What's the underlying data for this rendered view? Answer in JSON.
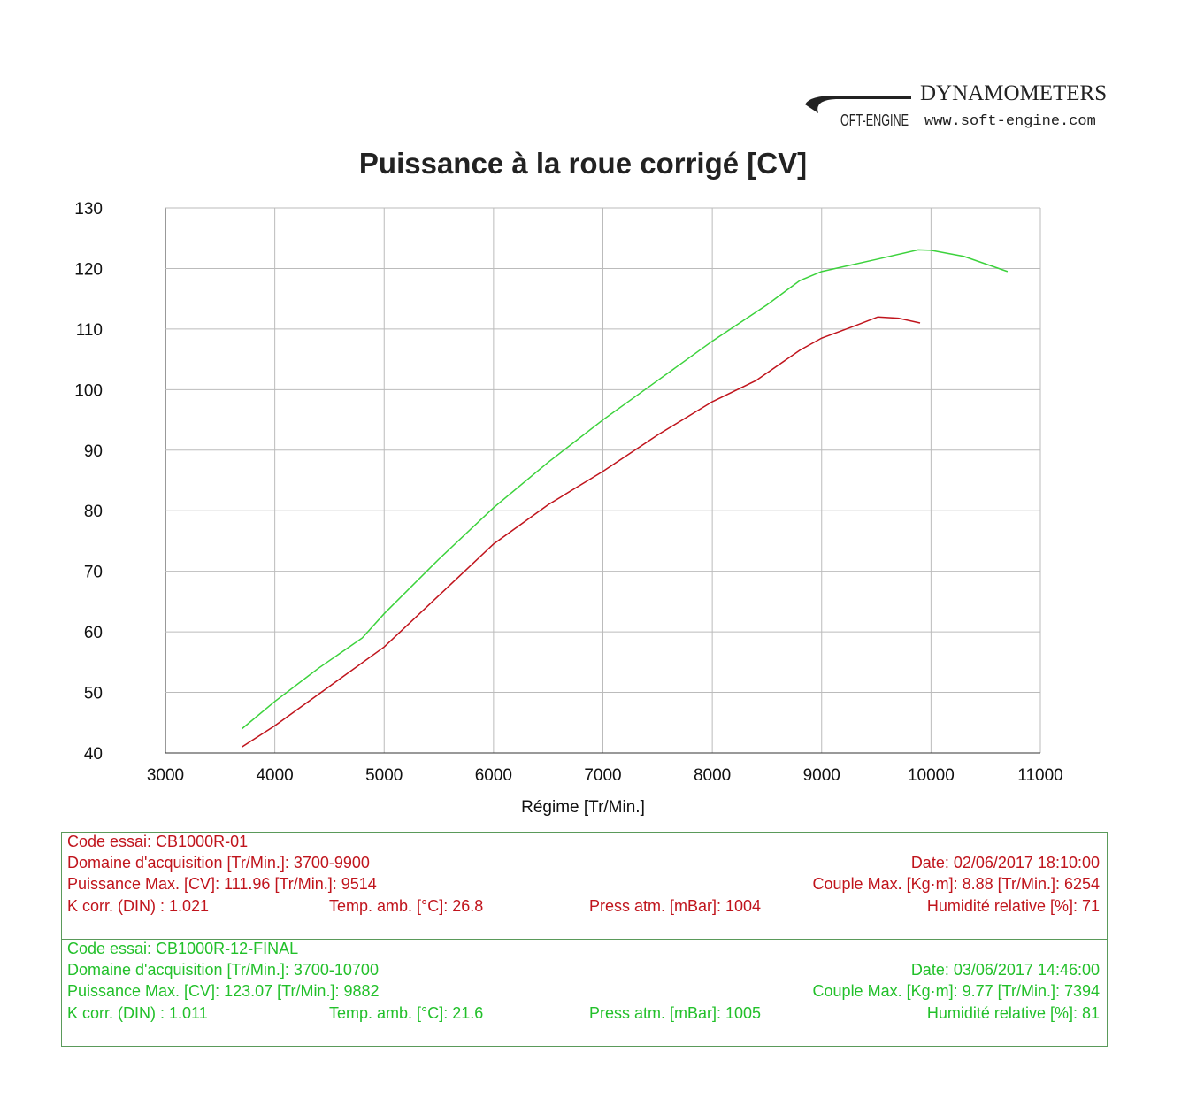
{
  "logo": {
    "brand": "DYNAMOMETERS",
    "sub": "OFT-ENGINE",
    "url": "www.soft-engine.com"
  },
  "chart_data": {
    "type": "line",
    "title": "Puissance à la roue corrigé [CV]",
    "xlabel": "Régime [Tr/Min.]",
    "ylabel": "",
    "xlim": [
      3000,
      11000
    ],
    "ylim": [
      40,
      130
    ],
    "xticks": [
      3000,
      4000,
      5000,
      6000,
      7000,
      8000,
      9000,
      10000,
      11000
    ],
    "yticks": [
      40,
      50,
      60,
      70,
      80,
      90,
      100,
      110,
      120,
      130
    ],
    "grid": true,
    "series": [
      {
        "name": "CB1000R-01",
        "color": "#c0141c",
        "points": [
          [
            3700,
            41
          ],
          [
            4000,
            44.5
          ],
          [
            4500,
            51
          ],
          [
            5000,
            57.5
          ],
          [
            5500,
            66
          ],
          [
            6000,
            74.5
          ],
          [
            6500,
            81
          ],
          [
            7000,
            86.5
          ],
          [
            7500,
            92.5
          ],
          [
            8000,
            98
          ],
          [
            8400,
            101.5
          ],
          [
            8800,
            106.5
          ],
          [
            9000,
            108.5
          ],
          [
            9300,
            110.5
          ],
          [
            9514,
            112
          ],
          [
            9700,
            111.8
          ],
          [
            9900,
            111
          ]
        ]
      },
      {
        "name": "CB1000R-12-FINAL",
        "color": "#3cd23c",
        "points": [
          [
            3700,
            44
          ],
          [
            4000,
            48.5
          ],
          [
            4400,
            54
          ],
          [
            4800,
            59
          ],
          [
            5000,
            63
          ],
          [
            5500,
            72
          ],
          [
            6000,
            80.5
          ],
          [
            6500,
            88
          ],
          [
            7000,
            95
          ],
          [
            7500,
            101.5
          ],
          [
            8000,
            108
          ],
          [
            8500,
            114
          ],
          [
            8800,
            118
          ],
          [
            9000,
            119.5
          ],
          [
            9500,
            121.5
          ],
          [
            9882,
            123.07
          ],
          [
            10000,
            123
          ],
          [
            10300,
            122
          ],
          [
            10700,
            119.5
          ]
        ]
      }
    ]
  },
  "tests": [
    {
      "code": "Code essai: CB1000R-01",
      "domain": "Domaine d'acquisition [Tr/Min.]: 3700-9900",
      "date": "Date: 02/06/2017   18:10:00",
      "pmax": "Puissance Max. [CV]: 111.96   [Tr/Min.]: 9514",
      "cmax": "Couple Max. [Kg·m]: 8.88   [Tr/Min.]: 6254",
      "kcorr": "K corr. (DIN) : 1.021",
      "temp": "Temp. amb. [°C]: 26.8",
      "press": "Press atm. [mBar]: 1004",
      "hum": "Humidité relative [%]: 71"
    },
    {
      "code": "Code essai: CB1000R-12-FINAL",
      "domain": "Domaine d'acquisition [Tr/Min.]: 3700-10700",
      "date": "Date: 03/06/2017   14:46:00",
      "pmax": "Puissance Max. [CV]: 123.07   [Tr/Min.]: 9882",
      "cmax": "Couple Max. [Kg·m]: 9.77   [Tr/Min.]: 7394",
      "kcorr": "K corr. (DIN) : 1.011",
      "temp": "Temp. amb. [°C]: 21.6",
      "press": "Press atm. [mBar]: 1005",
      "hum": "Humidité relative [%]: 81"
    }
  ]
}
